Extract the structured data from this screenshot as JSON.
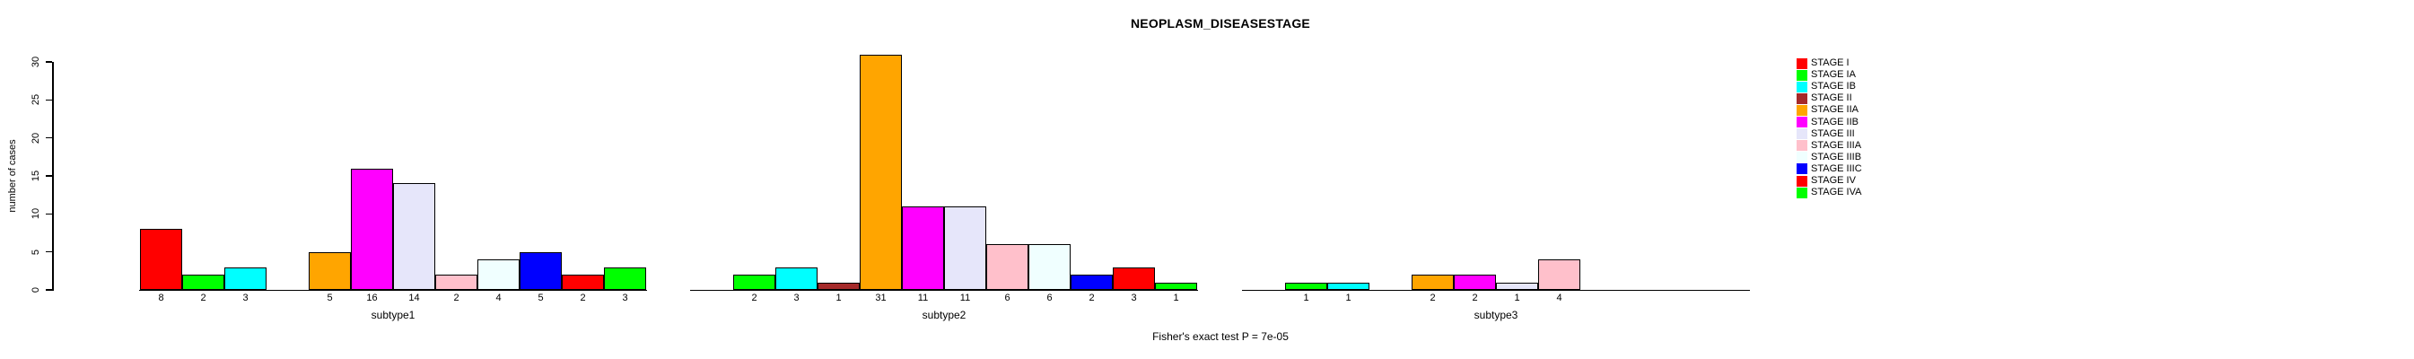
{
  "title": "NEOPLASM_DISEASESTAGE",
  "caption": "Fisher's exact test P = 7e-05",
  "y_axis": {
    "label": "number of cases",
    "ticks": [
      0,
      5,
      10,
      15,
      20,
      25,
      30
    ]
  },
  "chart_data": {
    "type": "bar",
    "title": "NEOPLASM_DISEASESTAGE",
    "xlabel": "",
    "ylabel": "number of cases",
    "ylim": [
      0,
      30
    ],
    "grid": false,
    "legend_position": "right",
    "bar_value_labels": true,
    "categories": [
      "subtype1",
      "subtype2",
      "subtype3"
    ],
    "series": [
      {
        "name": "STAGE I",
        "color": "#FF0000",
        "values": [
          8,
          0,
          0
        ]
      },
      {
        "name": "STAGE IA",
        "color": "#00FF00",
        "values": [
          2,
          2,
          1
        ]
      },
      {
        "name": "STAGE IB",
        "color": "#00FFFF",
        "values": [
          3,
          3,
          1
        ]
      },
      {
        "name": "STAGE II",
        "color": "#A52A2A",
        "values": [
          0,
          1,
          0
        ]
      },
      {
        "name": "STAGE IIA",
        "color": "#FFA500",
        "values": [
          5,
          31,
          2
        ]
      },
      {
        "name": "STAGE IIB",
        "color": "#FF00FF",
        "values": [
          16,
          11,
          2
        ]
      },
      {
        "name": "STAGE III",
        "color": "#E6E6FA",
        "values": [
          14,
          11,
          1
        ]
      },
      {
        "name": "STAGE IIIA",
        "color": "#FFC0CB",
        "values": [
          2,
          6,
          4
        ]
      },
      {
        "name": "STAGE IIIB",
        "color": "#F0FFFF",
        "values": [
          4,
          6,
          0
        ]
      },
      {
        "name": "STAGE IIIC",
        "color": "#0000FF",
        "values": [
          5,
          2,
          0
        ]
      },
      {
        "name": "STAGE IV",
        "color": "#FF0000",
        "values": [
          2,
          3,
          0
        ]
      },
      {
        "name": "STAGE IVA",
        "color": "#00FF00",
        "values": [
          3,
          1,
          0
        ]
      }
    ]
  }
}
